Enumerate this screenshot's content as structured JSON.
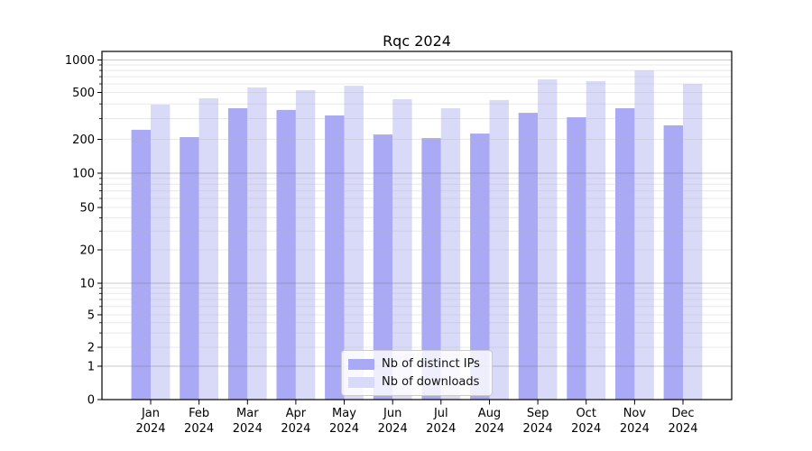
{
  "chart_data": {
    "type": "bar",
    "title": "Rqc 2024",
    "categories": [
      "Jan",
      "Feb",
      "Mar",
      "Apr",
      "May",
      "Jun",
      "Jul",
      "Aug",
      "Sep",
      "Oct",
      "Nov",
      "Dec"
    ],
    "category_year_line": "2024",
    "series": [
      {
        "name": "Nb of distinct IPs",
        "color": "#a9a9f6",
        "values": [
          241,
          209,
          367,
          355,
          319,
          220,
          205,
          224,
          336,
          308,
          367,
          263
        ]
      },
      {
        "name": "Nb of downloads",
        "color": "#d9d9f8",
        "values": [
          394,
          446,
          556,
          525,
          577,
          438,
          367,
          431,
          661,
          636,
          801,
          600
        ]
      }
    ],
    "xlabel": "",
    "ylabel": "",
    "yscale": "log-like with 0 baseline",
    "ylim": [
      0,
      1000
    ],
    "ytick_values": [
      0,
      1,
      2,
      5,
      10,
      20,
      50,
      100,
      200,
      500,
      1000
    ],
    "ytick_labels": [
      "0",
      "1",
      "2",
      "5",
      "10",
      "20",
      "50",
      "100",
      "200",
      "500",
      "1000"
    ],
    "grid": "major dark gray at 1/10/100/1000, light minor lines 2-9 per decade, drawn over bars",
    "legend_position": "lower center inside plot"
  }
}
